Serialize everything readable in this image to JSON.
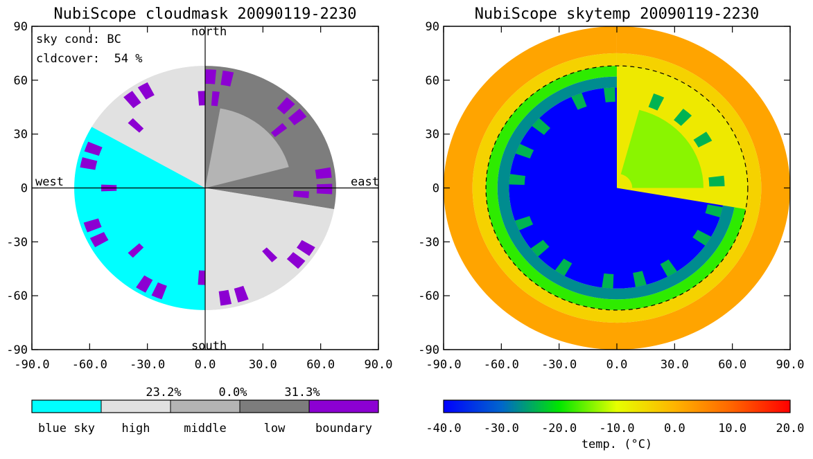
{
  "chart_data": [
    {
      "type": "heatmap",
      "title": "NubiScope cloudmask 20090119-2230",
      "xlim": [
        -90,
        90
      ],
      "ylim": [
        -90,
        90
      ],
      "x_ticks": [
        "-90.0",
        "-60.0",
        "-30.0",
        "0.0",
        "30.0",
        "60.0",
        "90.0"
      ],
      "y_ticks": [
        "90",
        "60",
        "30",
        "0",
        "-30",
        "-60",
        "-90"
      ],
      "direction_labels": {
        "north": "north",
        "south": "south",
        "west": "west",
        "east": "east"
      },
      "info": {
        "sky_cond": "sky cond: BC",
        "cldcover": "cldcover:  54 %"
      },
      "categories": [
        {
          "label": "blue sky",
          "color": "#00ffff",
          "pct": ""
        },
        {
          "label": "high",
          "color": "#e1e1e1",
          "pct": "23.2%"
        },
        {
          "label": "middle",
          "color": "#b4b4b4",
          "pct": "0.0%"
        },
        {
          "label": "low",
          "color": "#7d7d7d",
          "pct": "31.3%"
        },
        {
          "label": "boundary",
          "color": "#8c00d2",
          "pct": ""
        }
      ],
      "sky_radius": 68,
      "sectors": [
        {
          "from_az": 0,
          "to_az": 100,
          "category": "low"
        },
        {
          "from_az": 10,
          "to_az": 75,
          "category": "middle",
          "alt_range": [
            45,
            90
          ]
        },
        {
          "from_az": 100,
          "to_az": 180,
          "category": "high"
        },
        {
          "from_az": 180,
          "to_az": 300,
          "category": "blue sky"
        },
        {
          "from_az": 300,
          "to_az": 360,
          "category": "high"
        }
      ]
    },
    {
      "type": "heatmap",
      "title": "NubiScope skytemp 20090119-2230",
      "xlim": [
        -90,
        90
      ],
      "ylim": [
        -90,
        90
      ],
      "x_ticks": [
        "-90.0",
        "-60.0",
        "-30.0",
        "0.0",
        "30.0",
        "60.0",
        "90.0"
      ],
      "y_ticks": [
        "90",
        "60",
        "30",
        "0",
        "-30",
        "-60",
        "-90"
      ],
      "colorbar": {
        "range": [
          -40,
          20
        ],
        "ticks": [
          "-40.0",
          "-30.0",
          "-20.0",
          "-10.0",
          "0.0",
          "10.0",
          "20.0"
        ],
        "label": "temp. (°C)"
      },
      "sky_radius": 90,
      "dashed_circle_radius": 68,
      "clear_temp": -40,
      "cloud_temp": -7,
      "horizon_temp": 2
    }
  ]
}
